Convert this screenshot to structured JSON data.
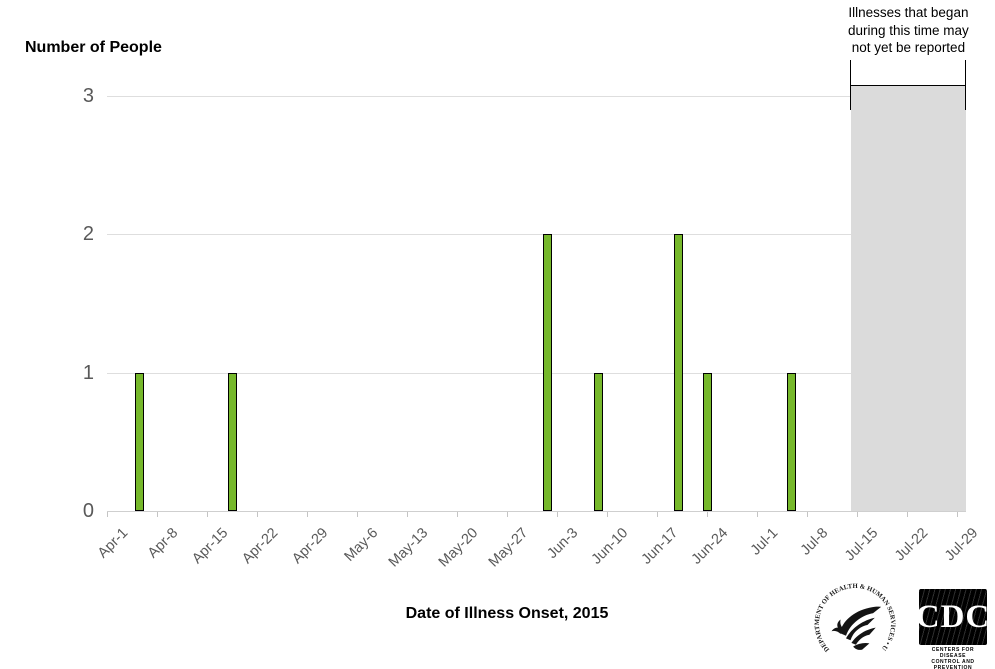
{
  "chart_data": {
    "type": "bar",
    "title": "",
    "ylabel": "Number of People",
    "xlabel": "Date of Illness Onset, 2015",
    "ylim": [
      0,
      3
    ],
    "y_ticks": [
      0,
      1,
      2,
      3
    ],
    "x_tick_labels": [
      "Apr-1",
      "Apr-8",
      "Apr-15",
      "Apr-22",
      "Apr-29",
      "May-6",
      "May-13",
      "May-20",
      "May-27",
      "Jun-3",
      "Jun-10",
      "Jun-17",
      "Jun-24",
      "Jul-1",
      "Jul-8",
      "Jul-15",
      "Jul-22",
      "Jul-29"
    ],
    "days_per_tick": 7,
    "grid": "horizontal",
    "legend": null,
    "bars": [
      {
        "onset_date": "Apr-5",
        "days_from_apr1": 4.5,
        "count": 1
      },
      {
        "onset_date": "Apr-18",
        "days_from_apr1": 17.5,
        "count": 1
      },
      {
        "onset_date": "Jun-1",
        "days_from_apr1": 61.6,
        "count": 2
      },
      {
        "onset_date": "Jun-9",
        "days_from_apr1": 68.8,
        "count": 1
      },
      {
        "onset_date": "Jun-20",
        "days_from_apr1": 80.0,
        "count": 2
      },
      {
        "onset_date": "Jun-24",
        "days_from_apr1": 84.1,
        "count": 1
      },
      {
        "onset_date": "Jul-6",
        "days_from_apr1": 95.8,
        "count": 1
      }
    ],
    "shaded_region": {
      "start_day": 104.1,
      "end_day": 120.3,
      "label_lines": [
        "Illnesses that began",
        "during this time may",
        "not yet be reported"
      ]
    },
    "colors": {
      "bar_fill": "#76B82B",
      "bar_border": "#000000",
      "gridline": "#DEDEDE",
      "axis_text": "#595959",
      "shaded_region": "#DBDBDB",
      "bracket": "#000000"
    }
  },
  "footer": {
    "hhs_logo": {
      "circle_text": "DEPARTMENT OF HEALTH & HUMAN SERVICES • USA"
    },
    "cdc_logo": {
      "acronym": "CDC",
      "tagline_line1": "CENTERS FOR DISEASE",
      "tagline_line2": "CONTROL AND PREVENTION"
    }
  }
}
